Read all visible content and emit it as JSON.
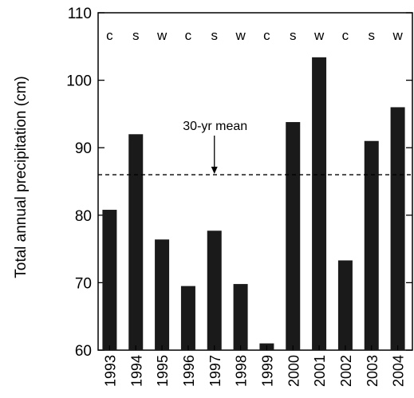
{
  "chart_data": {
    "type": "bar",
    "categories": [
      "1993",
      "1994",
      "1995",
      "1996",
      "1997",
      "1998",
      "1999",
      "2000",
      "2001",
      "2002",
      "2003",
      "2004"
    ],
    "values": [
      80.8,
      92.0,
      76.4,
      69.5,
      77.7,
      69.8,
      61.0,
      93.8,
      103.4,
      73.3,
      91.0,
      96.0
    ],
    "top_labels": [
      "c",
      "s",
      "w",
      "c",
      "s",
      "w",
      "c",
      "s",
      "w",
      "c",
      "s",
      "w"
    ],
    "ylabel": "Total annual precipitation (cm)",
    "ylim": [
      60,
      110
    ],
    "yticks": [
      60,
      70,
      80,
      90,
      100,
      110
    ],
    "reference_line": {
      "value": 86,
      "label": "30-yr mean",
      "style": "dashed"
    },
    "bar_color": "#1a1a1a",
    "grid": false
  }
}
